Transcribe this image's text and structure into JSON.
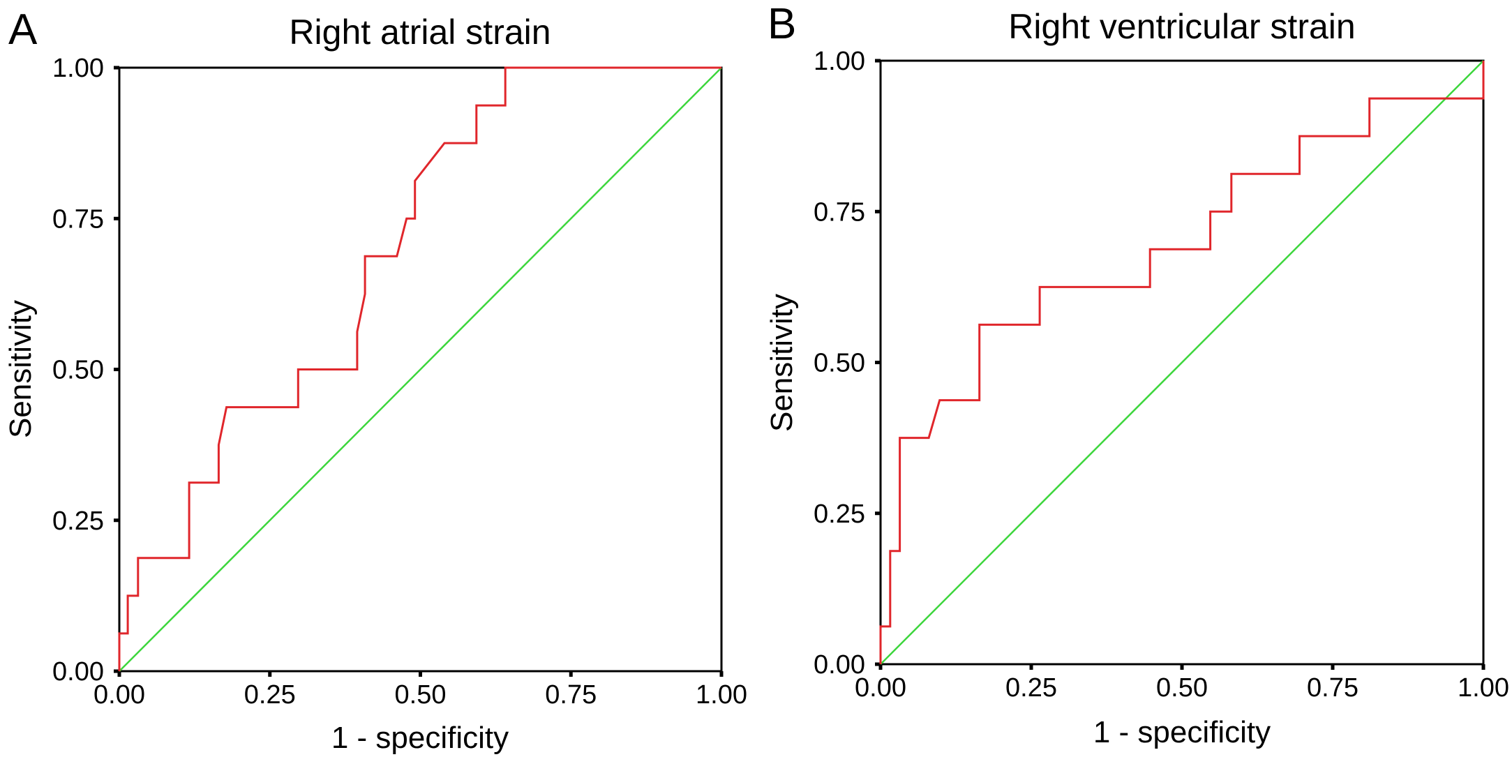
{
  "chart_data": [
    {
      "type": "line",
      "panel_label": "A",
      "title": "Right atrial strain",
      "xlabel": "1 - specificity",
      "ylabel": "Sensitivity",
      "xlim": [
        0,
        1
      ],
      "ylim": [
        0,
        1
      ],
      "x_ticks": [
        "0.00",
        "0.25",
        "0.50",
        "0.75",
        "1.00"
      ],
      "y_ticks": [
        "0.00",
        "0.25",
        "0.50",
        "0.75",
        "1.00"
      ],
      "grid": false,
      "series": [
        {
          "name": "ROC curve",
          "color": "#e0262b",
          "points": [
            [
              0.0,
              0.0
            ],
            [
              0.0,
              0.0625
            ],
            [
              0.014,
              0.0625
            ],
            [
              0.014,
              0.125
            ],
            [
              0.031,
              0.125
            ],
            [
              0.031,
              0.1875
            ],
            [
              0.116,
              0.1875
            ],
            [
              0.116,
              0.3125
            ],
            [
              0.165,
              0.3125
            ],
            [
              0.165,
              0.375
            ],
            [
              0.178,
              0.4375
            ],
            [
              0.297,
              0.4375
            ],
            [
              0.297,
              0.5
            ],
            [
              0.395,
              0.5
            ],
            [
              0.395,
              0.5625
            ],
            [
              0.408,
              0.625
            ],
            [
              0.408,
              0.6875
            ],
            [
              0.461,
              0.6875
            ],
            [
              0.477,
              0.75
            ],
            [
              0.491,
              0.75
            ],
            [
              0.491,
              0.8125
            ],
            [
              0.54,
              0.875
            ],
            [
              0.593,
              0.875
            ],
            [
              0.593,
              0.9375
            ],
            [
              0.641,
              0.9375
            ],
            [
              0.641,
              1.0
            ],
            [
              1.0,
              1.0
            ]
          ]
        },
        {
          "name": "Reference line",
          "color": "#3cd63c",
          "points": [
            [
              0,
              0
            ],
            [
              1,
              1
            ]
          ]
        }
      ]
    },
    {
      "type": "line",
      "panel_label": "B",
      "title": "Right ventricular strain",
      "xlabel": "1 - specificity",
      "ylabel": "Sensitivity",
      "xlim": [
        0,
        1
      ],
      "ylim": [
        0,
        1
      ],
      "x_ticks": [
        "0.00",
        "0.25",
        "0.50",
        "0.75",
        "1.00"
      ],
      "y_ticks": [
        "0.00",
        "0.25",
        "0.50",
        "0.75",
        "1.00"
      ],
      "grid": false,
      "series": [
        {
          "name": "ROC curve",
          "color": "#e0262b",
          "points": [
            [
              0.0,
              0.0
            ],
            [
              0.0,
              0.0625
            ],
            [
              0.016,
              0.0625
            ],
            [
              0.016,
              0.1875
            ],
            [
              0.032,
              0.1875
            ],
            [
              0.032,
              0.375
            ],
            [
              0.08,
              0.375
            ],
            [
              0.098,
              0.4375
            ],
            [
              0.164,
              0.4375
            ],
            [
              0.164,
              0.5625
            ],
            [
              0.264,
              0.5625
            ],
            [
              0.264,
              0.625
            ],
            [
              0.447,
              0.625
            ],
            [
              0.447,
              0.6875
            ],
            [
              0.547,
              0.6875
            ],
            [
              0.547,
              0.75
            ],
            [
              0.582,
              0.75
            ],
            [
              0.582,
              0.8125
            ],
            [
              0.695,
              0.8125
            ],
            [
              0.695,
              0.875
            ],
            [
              0.811,
              0.875
            ],
            [
              0.811,
              0.9375
            ],
            [
              1.0,
              0.9375
            ],
            [
              1.0,
              1.0
            ]
          ]
        },
        {
          "name": "Reference line",
          "color": "#3cd63c",
          "points": [
            [
              0,
              0
            ],
            [
              1,
              1
            ]
          ]
        }
      ]
    }
  ]
}
